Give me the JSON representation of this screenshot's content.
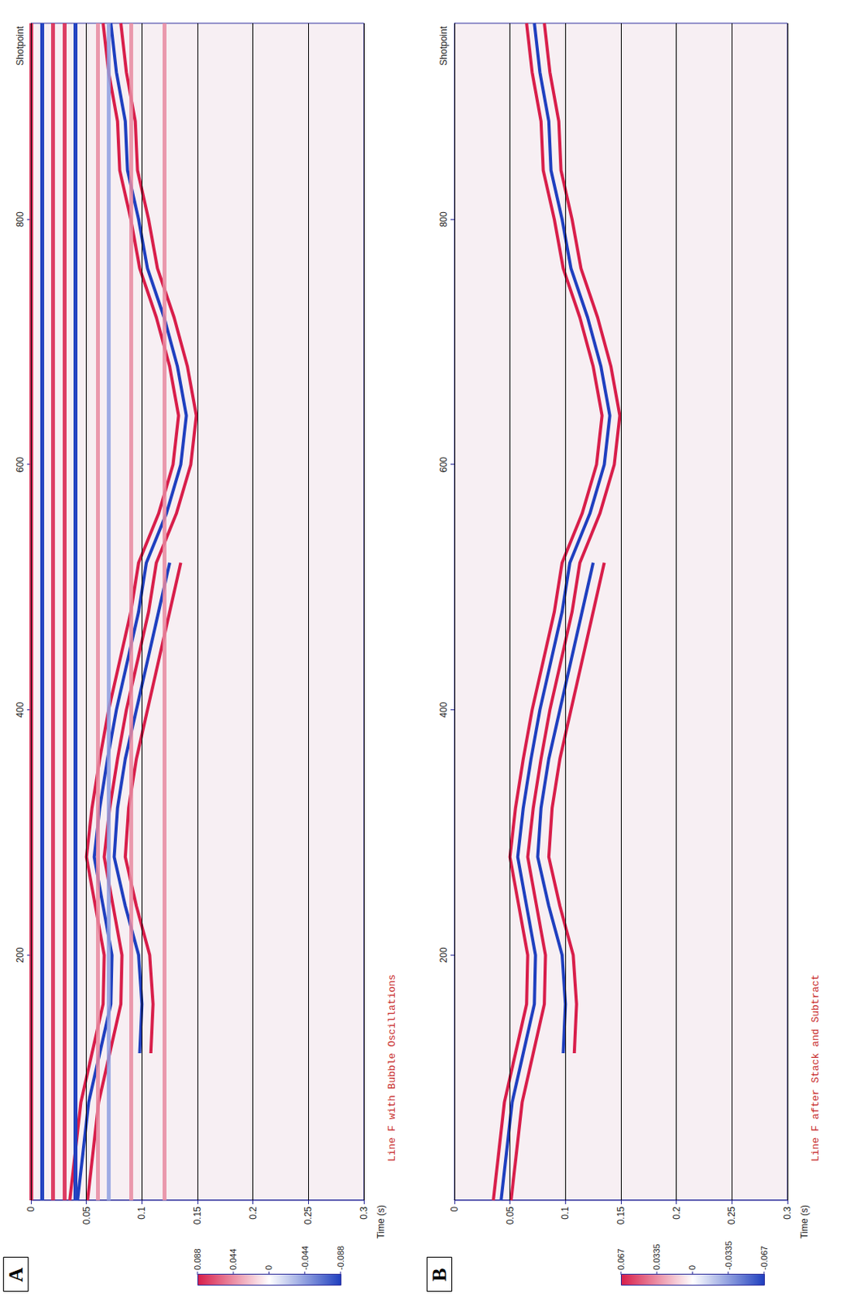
{
  "chart_data": [
    {
      "type": "line",
      "panel": "A",
      "title": "Line F with Bubble Oscillations",
      "x_label": "Shotpoint",
      "y_label": "Time (s)",
      "xlim": [
        0,
        960
      ],
      "xticks": [
        200,
        400,
        600,
        800
      ],
      "ylim": [
        0,
        0.3
      ],
      "yticks": [
        0,
        0.05,
        0.1,
        0.15,
        0.2,
        0.25,
        0.3
      ],
      "grid": true,
      "x": [
        0,
        40,
        80,
        120,
        160,
        200,
        240,
        280,
        320,
        360,
        400,
        440,
        480,
        520,
        560,
        600,
        640,
        680,
        720,
        760,
        800,
        840,
        880,
        920,
        960
      ],
      "bands": [
        {
          "value": 0.004,
          "color": "#d81e4a"
        },
        {
          "value": 0.008,
          "color": "#1f3fbf"
        },
        {
          "value": 0.012,
          "color": "#1f3fbf"
        },
        {
          "value": 0.02,
          "color": "#d81e4a"
        },
        {
          "value": 0.028,
          "color": "#d81e4a"
        },
        {
          "value": 0.036,
          "color": "#1f3fbf"
        },
        {
          "value": 0.04,
          "color": "#1f3fbf"
        },
        {
          "value": 0.062,
          "color": "#e88aa0"
        },
        {
          "value": 0.072,
          "color": "#8fa0e0"
        },
        {
          "value": 0.085,
          "color": "#e88aa0"
        },
        {
          "value": 0.12,
          "color": "#e88aa0"
        }
      ],
      "series": [
        {
          "color": "#d81e4a",
          "values": [
            0.035,
            0.04,
            0.045,
            0.055,
            0.065,
            0.066,
            0.058,
            0.05,
            0.055,
            0.062,
            0.07,
            0.08,
            0.09,
            0.097,
            0.115,
            0.128,
            0.133,
            0.125,
            0.113,
            0.098,
            0.09,
            0.08,
            0.078,
            0.07,
            0.065
          ]
        },
        {
          "color": "#1f3fbf",
          "values": [
            0.042,
            0.047,
            0.052,
            0.062,
            0.072,
            0.073,
            0.065,
            0.057,
            0.062,
            0.069,
            0.077,
            0.087,
            0.097,
            0.104,
            0.122,
            0.135,
            0.14,
            0.132,
            0.12,
            0.105,
            0.097,
            0.087,
            0.085,
            0.077,
            0.072
          ]
        },
        {
          "color": "#d81e4a",
          "values": [
            0.051,
            0.056,
            0.061,
            0.071,
            0.081,
            0.082,
            0.074,
            0.066,
            0.071,
            0.078,
            0.086,
            0.096,
            0.106,
            0.113,
            0.131,
            0.144,
            0.149,
            0.141,
            0.129,
            0.114,
            0.106,
            0.096,
            0.094,
            0.086,
            0.081
          ]
        },
        {
          "color": "#1f3fbf",
          "values": [
            null,
            null,
            null,
            0.098,
            0.1,
            0.097,
            0.085,
            0.075,
            0.078,
            0.085,
            0.095,
            0.105,
            0.115,
            0.125,
            null,
            null,
            null,
            null,
            null,
            null,
            null,
            null,
            null,
            null,
            null
          ]
        },
        {
          "color": "#d81e4a",
          "values": [
            null,
            null,
            null,
            0.108,
            0.11,
            0.107,
            0.095,
            0.085,
            0.088,
            0.095,
            0.105,
            0.115,
            0.125,
            0.135,
            null,
            null,
            null,
            null,
            null,
            null,
            null,
            null,
            null,
            null,
            null
          ]
        }
      ],
      "colorbar": {
        "range": [
          0.088,
          -0.088
        ],
        "ticks": [
          0.088,
          0.044,
          0,
          -0.044,
          -0.088
        ],
        "colors": [
          "#d81e4a",
          "#ffffff",
          "#1f3fbf"
        ]
      }
    },
    {
      "type": "line",
      "panel": "B",
      "title": "Line F after Stack and Subtract",
      "x_label": "Shotpoint",
      "y_label": "Time (s)",
      "xlim": [
        0,
        960
      ],
      "xticks": [
        200,
        400,
        600,
        800
      ],
      "ylim": [
        0,
        0.3
      ],
      "yticks": [
        0,
        0.05,
        0.1,
        0.15,
        0.2,
        0.25,
        0.3
      ],
      "grid": true,
      "x": [
        0,
        40,
        80,
        120,
        160,
        200,
        240,
        280,
        320,
        360,
        400,
        440,
        480,
        520,
        560,
        600,
        640,
        680,
        720,
        760,
        800,
        840,
        880,
        920,
        960
      ],
      "series": [
        {
          "color": "#d81e4a",
          "values": [
            0.035,
            0.04,
            0.045,
            0.055,
            0.065,
            0.066,
            0.058,
            0.05,
            0.055,
            0.062,
            0.07,
            0.08,
            0.09,
            0.097,
            0.115,
            0.128,
            0.133,
            0.125,
            0.113,
            0.098,
            0.09,
            0.08,
            0.078,
            0.07,
            0.065
          ]
        },
        {
          "color": "#1f3fbf",
          "values": [
            0.042,
            0.047,
            0.052,
            0.062,
            0.072,
            0.073,
            0.065,
            0.057,
            0.062,
            0.069,
            0.077,
            0.087,
            0.097,
            0.104,
            0.122,
            0.135,
            0.14,
            0.132,
            0.12,
            0.105,
            0.097,
            0.087,
            0.085,
            0.077,
            0.072
          ]
        },
        {
          "color": "#d81e4a",
          "values": [
            0.051,
            0.056,
            0.061,
            0.071,
            0.081,
            0.082,
            0.074,
            0.066,
            0.071,
            0.078,
            0.086,
            0.096,
            0.106,
            0.113,
            0.131,
            0.144,
            0.149,
            0.141,
            0.129,
            0.114,
            0.106,
            0.096,
            0.094,
            0.086,
            0.081
          ]
        },
        {
          "color": "#1f3fbf",
          "values": [
            null,
            null,
            null,
            0.098,
            0.1,
            0.097,
            0.085,
            0.075,
            0.078,
            0.085,
            0.095,
            0.105,
            0.115,
            0.125,
            null,
            null,
            null,
            null,
            null,
            null,
            null,
            null,
            null,
            null,
            null
          ]
        },
        {
          "color": "#d81e4a",
          "values": [
            null,
            null,
            null,
            0.108,
            0.11,
            0.107,
            0.095,
            0.085,
            0.088,
            0.095,
            0.105,
            0.115,
            0.125,
            0.135,
            null,
            null,
            null,
            null,
            null,
            null,
            null,
            null,
            null,
            null,
            null
          ]
        }
      ],
      "colorbar": {
        "range": [
          0.067,
          -0.067
        ],
        "ticks": [
          0.067,
          0.0335,
          0,
          -0.0335,
          -0.067
        ],
        "colors": [
          "#d81e4a",
          "#ffffff",
          "#1f3fbf"
        ]
      }
    }
  ]
}
